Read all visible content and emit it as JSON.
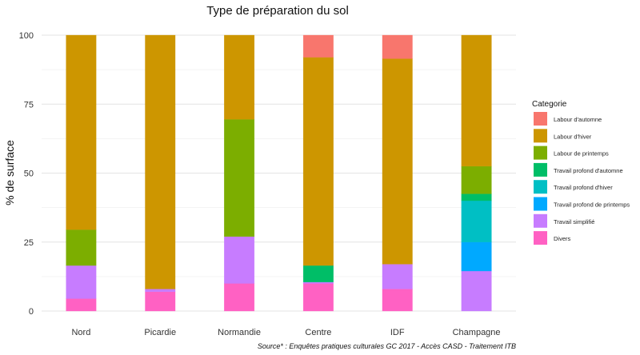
{
  "chart_data": {
    "type": "bar",
    "stacked": true,
    "title": "Type de préparation du sol",
    "xlabel": "",
    "ylabel": "% de surface",
    "ylim": [
      0,
      100
    ],
    "yticks": [
      0,
      25,
      50,
      75,
      100
    ],
    "grid": true,
    "legend_position": "right",
    "legend_title": "Categorie",
    "caption": "Source* : Enquêtes pratiques culturales GC 2017 - Accès CASD - Traitement ITB",
    "categories": [
      "Nord",
      "Picardie",
      "Normandie",
      "Centre",
      "IDF",
      "Champagne"
    ],
    "legend_order": [
      "Labour d'automne",
      "Labour d'hiver",
      "Labour de printemps",
      "Travail profond d'automne",
      "Travail profond d'hiver",
      "Travail profond de printemps",
      "Travail simplifié",
      "Divers"
    ],
    "series": [
      {
        "name": "Divers",
        "color": "#FF61C3",
        "values": [
          4.5,
          7,
          10,
          10,
          8,
          0
        ]
      },
      {
        "name": "Travail simplifié",
        "color": "#C77CFF",
        "values": [
          12,
          1,
          17,
          0.5,
          9,
          14.5
        ]
      },
      {
        "name": "Travail profond de printemps",
        "color": "#00A9FF",
        "values": [
          0,
          0,
          0,
          0,
          0,
          10.5
        ]
      },
      {
        "name": "Travail profond d'hiver",
        "color": "#00BFC4",
        "values": [
          0,
          0,
          0,
          0,
          0,
          15
        ]
      },
      {
        "name": "Travail profond d'automne",
        "color": "#00BE67",
        "values": [
          0,
          0,
          0,
          6,
          0,
          2.5
        ]
      },
      {
        "name": "Labour de printemps",
        "color": "#7CAE00",
        "values": [
          13,
          0,
          42.5,
          0,
          0,
          10
        ]
      },
      {
        "name": "Labour d'hiver",
        "color": "#CD9600",
        "values": [
          70.5,
          92,
          30.5,
          75.5,
          74.5,
          47.5
        ]
      },
      {
        "name": "Labour d'automne",
        "color": "#F8766D",
        "values": [
          0,
          0,
          0,
          8,
          8.5,
          0
        ]
      }
    ]
  }
}
